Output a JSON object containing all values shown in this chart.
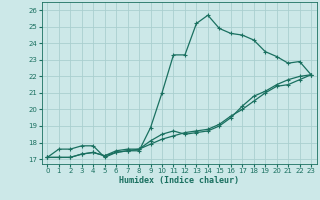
{
  "title": "",
  "xlabel": "Humidex (Indice chaleur)",
  "bg_color": "#cce8e8",
  "grid_color": "#aacfcf",
  "line_color": "#1a7060",
  "xlim": [
    -0.5,
    23.5
  ],
  "ylim": [
    16.7,
    26.5
  ],
  "xticks": [
    0,
    1,
    2,
    3,
    4,
    5,
    6,
    7,
    8,
    9,
    10,
    11,
    12,
    13,
    14,
    15,
    16,
    17,
    18,
    19,
    20,
    21,
    22,
    23
  ],
  "yticks": [
    17,
    18,
    19,
    20,
    21,
    22,
    23,
    24,
    25,
    26
  ],
  "line1_x": [
    0,
    1,
    2,
    3,
    4,
    5,
    6,
    7,
    8,
    9,
    10,
    11,
    12,
    13,
    14,
    15,
    16,
    17,
    18,
    19,
    20,
    21,
    22,
    23
  ],
  "line1_y": [
    17.1,
    17.6,
    17.6,
    17.8,
    17.8,
    17.1,
    17.4,
    17.5,
    17.5,
    18.9,
    21.0,
    23.3,
    23.3,
    25.2,
    25.7,
    24.9,
    24.6,
    24.5,
    24.2,
    23.5,
    23.2,
    22.8,
    22.9,
    22.1
  ],
  "line2_x": [
    0,
    1,
    2,
    3,
    4,
    5,
    6,
    7,
    8,
    9,
    10,
    11,
    12,
    13,
    14,
    15,
    16,
    17,
    18,
    19,
    20,
    21,
    22,
    23
  ],
  "line2_y": [
    17.1,
    17.1,
    17.1,
    17.3,
    17.4,
    17.2,
    17.4,
    17.5,
    17.6,
    17.9,
    18.2,
    18.4,
    18.6,
    18.7,
    18.8,
    19.1,
    19.6,
    20.0,
    20.5,
    21.0,
    21.4,
    21.5,
    21.8,
    22.1
  ],
  "line3_x": [
    0,
    1,
    2,
    3,
    4,
    5,
    6,
    7,
    8,
    9,
    10,
    11,
    12,
    13,
    14,
    15,
    16,
    17,
    18,
    19,
    20,
    21,
    22,
    23
  ],
  "line3_y": [
    17.1,
    17.1,
    17.1,
    17.3,
    17.4,
    17.2,
    17.5,
    17.6,
    17.6,
    18.1,
    18.5,
    18.7,
    18.5,
    18.6,
    18.7,
    19.0,
    19.5,
    20.2,
    20.8,
    21.1,
    21.5,
    21.8,
    22.0,
    22.1
  ]
}
